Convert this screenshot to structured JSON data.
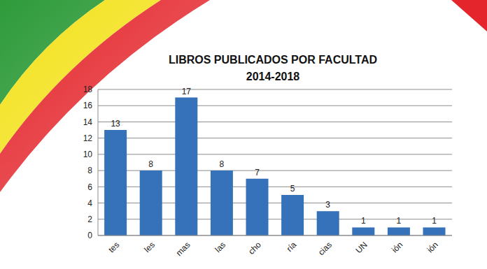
{
  "chart_data": {
    "type": "bar",
    "title": "LIBROS PUBLICADOS POR FACULTAD",
    "subtitle": "2014-2018",
    "categories": [
      "tes",
      "les",
      "mas",
      "las",
      "cho",
      "ría",
      "cias",
      "UN",
      "ión",
      "ión"
    ],
    "values": [
      13,
      8,
      17,
      8,
      7,
      5,
      3,
      1,
      1,
      1
    ],
    "color": "#3572b9",
    "ylim": [
      0,
      18
    ],
    "yticks": [
      0,
      2,
      4,
      6,
      8,
      10,
      12,
      14,
      16,
      18
    ],
    "grid": true,
    "data_labels": true
  }
}
